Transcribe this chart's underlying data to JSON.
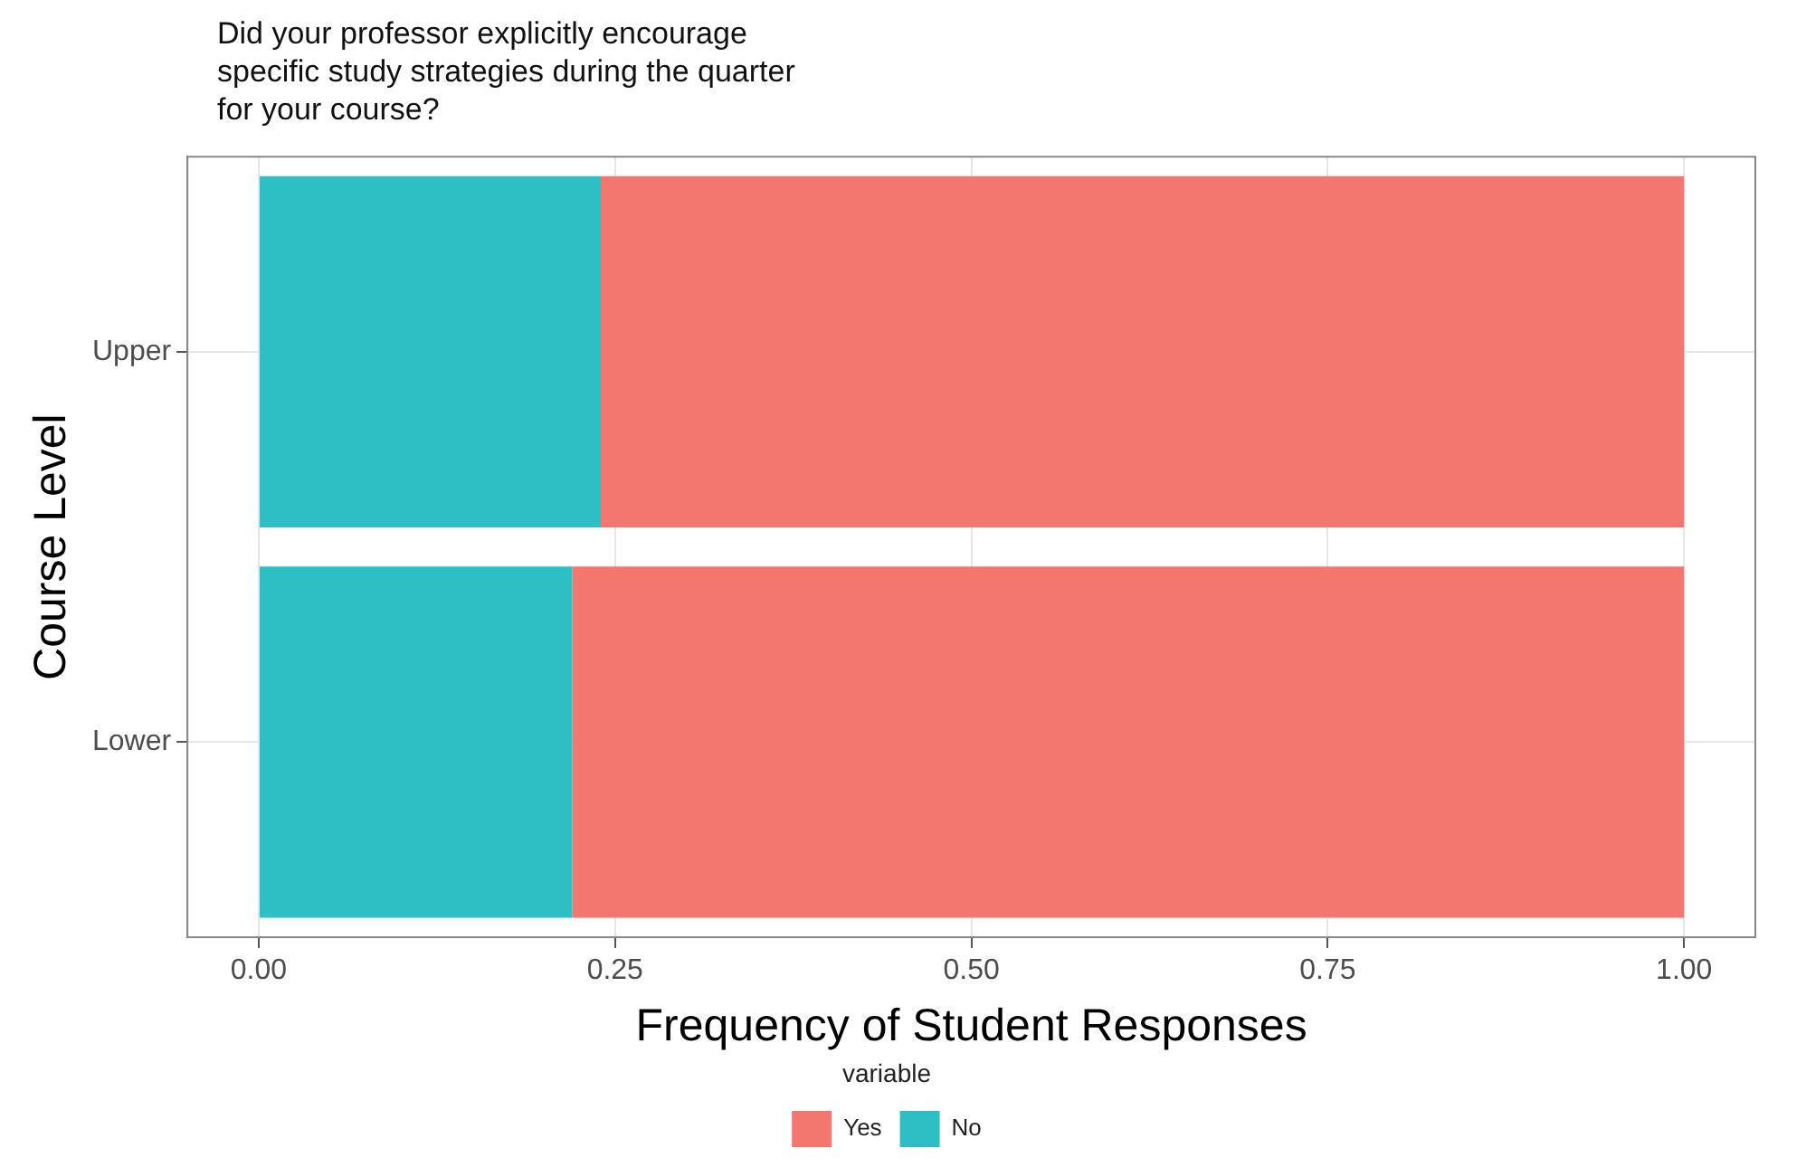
{
  "chart_data": {
    "type": "bar",
    "orientation": "horizontal",
    "stacked": true,
    "title": "Did your professor explicitly encourage specific study strategies during the quarter for your course?",
    "xlabel": "Frequency of Student Responses",
    "ylabel": "Course Level",
    "legend_title": "variable",
    "categories": [
      "Upper",
      "Lower"
    ],
    "series": [
      {
        "name": "No",
        "color": "#2dbfc3",
        "values": [
          0.24,
          0.22
        ]
      },
      {
        "name": "Yes",
        "color": "#f3766f",
        "values": [
          0.76,
          0.78
        ]
      }
    ],
    "xlim": [
      -0.05,
      1.05
    ],
    "xticks": [
      {
        "value": 0,
        "label": "0.00"
      },
      {
        "value": 0.25,
        "label": "0.25"
      },
      {
        "value": 0.5,
        "label": "0.50"
      },
      {
        "value": 0.75,
        "label": "0.75"
      },
      {
        "value": 1,
        "label": "1.00"
      }
    ],
    "grid": true,
    "legend": "bottom"
  }
}
